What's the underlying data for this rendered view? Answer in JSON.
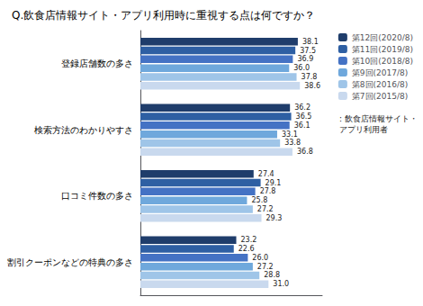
{
  "chart_data": {
    "type": "bar",
    "orientation": "horizontal",
    "title": "Q.飲食店情報サイト・アプリ利用時に重視する点は何ですか？",
    "categories": [
      "登録店舗数の多さ",
      "検索方法のわかりやすさ",
      "口コミ件数の多さ",
      "割引クーポンなどの特典の多さ"
    ],
    "series": [
      {
        "name": "第12回(2020/8)",
        "color": "#1F3D6B",
        "values": [
          38.1,
          36.2,
          27.4,
          23.2
        ]
      },
      {
        "name": "第11回(2019/8)",
        "color": "#2E5FA3",
        "values": [
          37.5,
          36.5,
          29.1,
          22.6
        ]
      },
      {
        "name": "第10回(2018/8)",
        "color": "#4472C4",
        "values": [
          36.9,
          36.1,
          27.8,
          26.0
        ],
        "value_labels": [
          "36.9",
          "36.1",
          "27.8",
          "26.0"
        ]
      },
      {
        "name": "第9回(2017/8)",
        "color": "#6FA8DC",
        "values": [
          36.0,
          33.1,
          25.8,
          27.2
        ],
        "value_labels": [
          "36.0",
          "33.1",
          "25.8",
          "27.2"
        ]
      },
      {
        "name": "第8回(2016/8)",
        "color": "#9FC5E8",
        "values": [
          37.8,
          33.8,
          27.2,
          28.8
        ]
      },
      {
        "name": "第7回(2015/8)",
        "color": "#C9D9EE",
        "values": [
          38.6,
          36.8,
          29.3,
          31.0
        ],
        "value_labels": [
          "38.6",
          "36.8",
          "29.3",
          "31.0"
        ]
      }
    ],
    "xlim": [
      0,
      44
    ],
    "data_labels": true,
    "tick_labels": "y",
    "grid": false,
    "legend": "upper right",
    "annotations": [
      ": 飲食店情報サイト・\nアプリ利用者"
    ]
  }
}
